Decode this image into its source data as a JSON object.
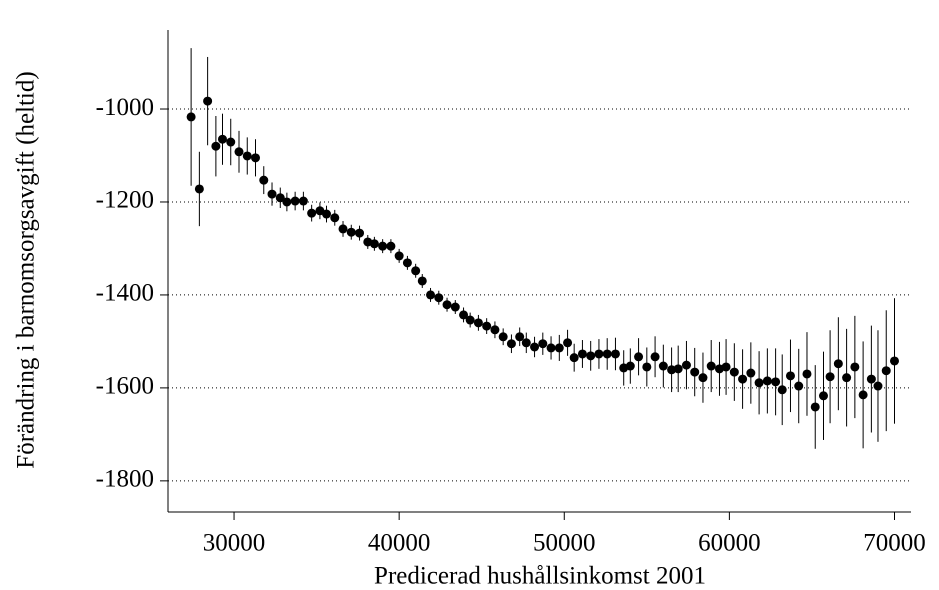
{
  "chart_data": {
    "type": "scatter",
    "x_label": "Predicerad hushållsinkomst 2001",
    "y_label": "Förändring i barnomsorgsavgift (heltid)",
    "x": [
      27400,
      27900,
      28400,
      28900,
      29300,
      29800,
      30300,
      30800,
      31300,
      31800,
      32300,
      32800,
      33200,
      33700,
      34200,
      34700,
      35200,
      35600,
      36100,
      36600,
      37100,
      37600,
      38100,
      38500,
      39000,
      39500,
      40000,
      40500,
      41000,
      41400,
      41900,
      42400,
      42900,
      43400,
      43900,
      44300,
      44800,
      45300,
      45800,
      46300,
      46800,
      47300,
      47700,
      48200,
      48700,
      49200,
      49700,
      50200,
      50600,
      51100,
      51600,
      52100,
      52600,
      53100,
      53600,
      54000,
      54500,
      55000,
      55500,
      56000,
      56500,
      56900,
      57400,
      57900,
      58400,
      58900,
      59400,
      59800,
      60300,
      60800,
      61300,
      61800,
      62300,
      62800,
      63200,
      63700,
      64200,
      64700,
      65200,
      65700,
      66100,
      66600,
      67100,
      67600,
      68100,
      68600,
      69000,
      69500,
      70000
    ],
    "values": [
      -1017,
      -1172,
      -983,
      -1080,
      -1065,
      -1071,
      -1092,
      -1101,
      -1105,
      -1153,
      -1183,
      -1191,
      -1200,
      -1198,
      -1198,
      -1224,
      -1219,
      -1226,
      -1234,
      -1258,
      -1265,
      -1267,
      -1286,
      -1290,
      -1295,
      -1295,
      -1316,
      -1331,
      -1348,
      -1370,
      -1400,
      -1406,
      -1421,
      -1426,
      -1443,
      -1454,
      -1460,
      -1467,
      -1475,
      -1490,
      -1505,
      -1490,
      -1503,
      -1512,
      -1505,
      -1514,
      -1514,
      -1503,
      -1535,
      -1527,
      -1531,
      -1527,
      -1527,
      -1527,
      -1557,
      -1553,
      -1533,
      -1555,
      -1533,
      -1553,
      -1561,
      -1559,
      -1551,
      -1566,
      -1578,
      -1553,
      -1559,
      -1555,
      -1566,
      -1581,
      -1568,
      -1589,
      -1585,
      -1587,
      -1604,
      -1574,
      -1596,
      -1570,
      -1641,
      -1617,
      -1576,
      -1548,
      -1578,
      -1555,
      -1615,
      -1581,
      -1596,
      -1563,
      -1542
    ],
    "errors": [
      148,
      80,
      95,
      65,
      55,
      50,
      45,
      40,
      40,
      30,
      25,
      22,
      20,
      20,
      20,
      18,
      18,
      18,
      17,
      17,
      16,
      16,
      15,
      15,
      15,
      15,
      15,
      15,
      15,
      15,
      15,
      15,
      15,
      15,
      16,
      16,
      17,
      17,
      18,
      18,
      20,
      20,
      22,
      22,
      24,
      25,
      28,
      28,
      30,
      30,
      32,
      32,
      34,
      35,
      38,
      38,
      40,
      42,
      44,
      46,
      48,
      50,
      52,
      52,
      54,
      56,
      58,
      60,
      62,
      64,
      66,
      68,
      70,
      72,
      76,
      78,
      80,
      90,
      90,
      95,
      100,
      100,
      105,
      110,
      115,
      115,
      120,
      130,
      135
    ],
    "color": "#000000",
    "xlim": [
      26000,
      71000
    ],
    "xticks": [
      30000,
      40000,
      50000,
      60000,
      70000
    ],
    "ylim": [
      -1867,
      -830
    ],
    "yticks": [
      -1800,
      -1600,
      -1400,
      -1200,
      -1000
    ],
    "grid": true
  }
}
